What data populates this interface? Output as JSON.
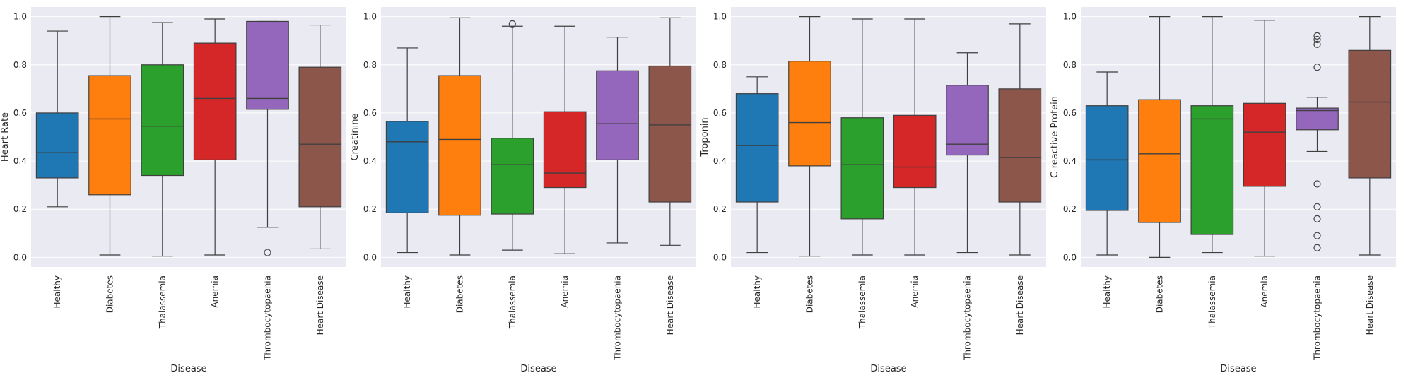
{
  "figure": {
    "background": "#ffffff",
    "axes_facecolor": "#eaeaf2",
    "grid_color": "#ffffff"
  },
  "palette": [
    "#1f77b4",
    "#ff7f0e",
    "#2ca02c",
    "#d62728",
    "#9467bd",
    "#8c564b"
  ],
  "chart_data": [
    {
      "type": "box",
      "xlabel": "Disease",
      "ylabel": "Heart Rate",
      "categories": [
        "Healthy",
        "Diabetes",
        "Thalassemia",
        "Anemia",
        "Thrombocytopaenia",
        "Heart Disease"
      ],
      "yticks": [
        "0.0",
        "0.2",
        "0.4",
        "0.6",
        "0.8",
        "1.0"
      ],
      "ylim": [
        -0.04,
        1.04
      ],
      "grid": true,
      "boxes": [
        {
          "whisker_low": 0.21,
          "q1": 0.33,
          "median": 0.435,
          "q3": 0.6,
          "whisker_high": 0.94,
          "outliers": []
        },
        {
          "whisker_low": 0.01,
          "q1": 0.26,
          "median": 0.575,
          "q3": 0.755,
          "whisker_high": 1.0,
          "outliers": []
        },
        {
          "whisker_low": 0.005,
          "q1": 0.34,
          "median": 0.545,
          "q3": 0.8,
          "whisker_high": 0.975,
          "outliers": []
        },
        {
          "whisker_low": 0.01,
          "q1": 0.405,
          "median": 0.66,
          "q3": 0.89,
          "whisker_high": 0.99,
          "outliers": []
        },
        {
          "whisker_low": 0.125,
          "q1": 0.615,
          "median": 0.66,
          "q3": 0.98,
          "whisker_high": 0.98,
          "outliers": [
            0.02
          ]
        },
        {
          "whisker_low": 0.035,
          "q1": 0.21,
          "median": 0.47,
          "q3": 0.79,
          "whisker_high": 0.965,
          "outliers": []
        }
      ]
    },
    {
      "type": "box",
      "xlabel": "Disease",
      "ylabel": "Creatinine",
      "categories": [
        "Healthy",
        "Diabetes",
        "Thalassemia",
        "Anemia",
        "Thrombocytopaenia",
        "Heart Disease"
      ],
      "yticks": [
        "0.0",
        "0.2",
        "0.4",
        "0.6",
        "0.8",
        "1.0"
      ],
      "ylim": [
        -0.04,
        1.04
      ],
      "grid": true,
      "boxes": [
        {
          "whisker_low": 0.02,
          "q1": 0.185,
          "median": 0.48,
          "q3": 0.565,
          "whisker_high": 0.87,
          "outliers": []
        },
        {
          "whisker_low": 0.01,
          "q1": 0.175,
          "median": 0.49,
          "q3": 0.755,
          "whisker_high": 0.995,
          "outliers": []
        },
        {
          "whisker_low": 0.03,
          "q1": 0.18,
          "median": 0.385,
          "q3": 0.495,
          "whisker_high": 0.96,
          "outliers": [
            0.97
          ]
        },
        {
          "whisker_low": 0.015,
          "q1": 0.29,
          "median": 0.35,
          "q3": 0.605,
          "whisker_high": 0.96,
          "outliers": []
        },
        {
          "whisker_low": 0.06,
          "q1": 0.405,
          "median": 0.555,
          "q3": 0.775,
          "whisker_high": 0.915,
          "outliers": []
        },
        {
          "whisker_low": 0.05,
          "q1": 0.23,
          "median": 0.55,
          "q3": 0.795,
          "whisker_high": 0.995,
          "outliers": []
        }
      ]
    },
    {
      "type": "box",
      "xlabel": "Disease",
      "ylabel": "Troponin",
      "categories": [
        "Healthy",
        "Diabetes",
        "Thalassemia",
        "Anemia",
        "Thrombocytopaenia",
        "Heart Disease"
      ],
      "yticks": [
        "0.0",
        "0.2",
        "0.4",
        "0.6",
        "0.8",
        "1.0"
      ],
      "ylim": [
        -0.04,
        1.04
      ],
      "grid": true,
      "boxes": [
        {
          "whisker_low": 0.02,
          "q1": 0.23,
          "median": 0.465,
          "q3": 0.68,
          "whisker_high": 0.75,
          "outliers": []
        },
        {
          "whisker_low": 0.005,
          "q1": 0.38,
          "median": 0.56,
          "q3": 0.815,
          "whisker_high": 1.0,
          "outliers": []
        },
        {
          "whisker_low": 0.01,
          "q1": 0.16,
          "median": 0.385,
          "q3": 0.58,
          "whisker_high": 0.99,
          "outliers": []
        },
        {
          "whisker_low": 0.01,
          "q1": 0.29,
          "median": 0.375,
          "q3": 0.59,
          "whisker_high": 0.99,
          "outliers": []
        },
        {
          "whisker_low": 0.02,
          "q1": 0.425,
          "median": 0.47,
          "q3": 0.715,
          "whisker_high": 0.85,
          "outliers": []
        },
        {
          "whisker_low": 0.01,
          "q1": 0.23,
          "median": 0.415,
          "q3": 0.7,
          "whisker_high": 0.97,
          "outliers": []
        }
      ]
    },
    {
      "type": "box",
      "xlabel": "Disease",
      "ylabel": "C-reactive Protein",
      "categories": [
        "Healthy",
        "Diabetes",
        "Thalassemia",
        "Anemia",
        "Thrombocytopaenia",
        "Heart Disease"
      ],
      "yticks": [
        "0.0",
        "0.2",
        "0.4",
        "0.6",
        "0.8",
        "1.0"
      ],
      "ylim": [
        -0.04,
        1.04
      ],
      "grid": true,
      "boxes": [
        {
          "whisker_low": 0.01,
          "q1": 0.195,
          "median": 0.405,
          "q3": 0.63,
          "whisker_high": 0.77,
          "outliers": []
        },
        {
          "whisker_low": 0.0,
          "q1": 0.145,
          "median": 0.43,
          "q3": 0.655,
          "whisker_high": 1.0,
          "outliers": []
        },
        {
          "whisker_low": 0.02,
          "q1": 0.095,
          "median": 0.575,
          "q3": 0.63,
          "whisker_high": 1.0,
          "outliers": []
        },
        {
          "whisker_low": 0.005,
          "q1": 0.295,
          "median": 0.52,
          "q3": 0.64,
          "whisker_high": 0.985,
          "outliers": []
        },
        {
          "whisker_low": 0.44,
          "q1": 0.53,
          "median": 0.61,
          "q3": 0.62,
          "whisker_high": 0.665,
          "outliers": [
            0.92,
            0.905,
            0.885,
            0.79,
            0.305,
            0.21,
            0.16,
            0.09,
            0.04
          ]
        },
        {
          "whisker_low": 0.01,
          "q1": 0.33,
          "median": 0.645,
          "q3": 0.86,
          "whisker_high": 1.0,
          "outliers": []
        }
      ]
    }
  ]
}
